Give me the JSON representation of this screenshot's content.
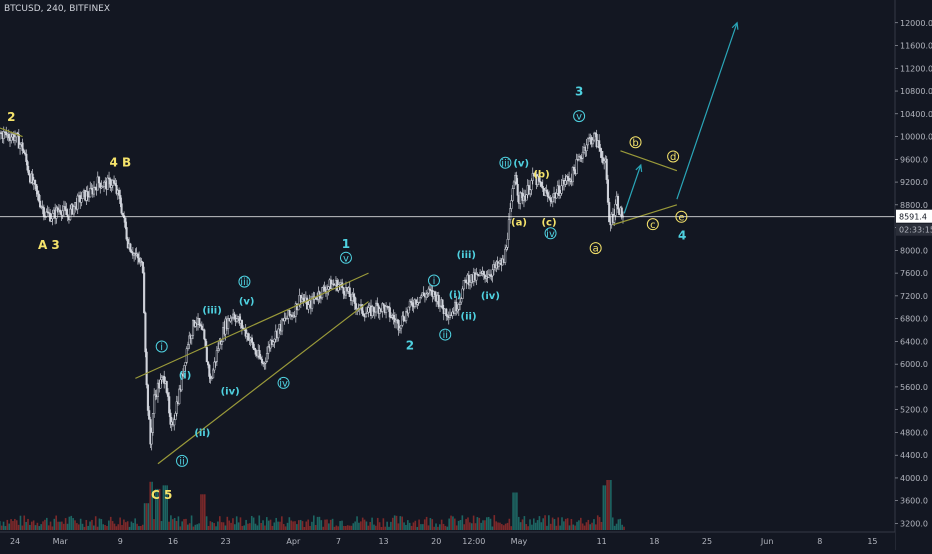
{
  "header": {
    "symbol": "BTCUSD, 240, BITFINEX"
  },
  "colors": {
    "background": "#131722",
    "candle_up": "#d1d4dc",
    "candle_down": "#d1d4dc",
    "volume_up": "#1f6f6a",
    "volume_down": "#8a2b2b",
    "wave_yellow": "#f5e36b",
    "wave_cyan": "#4fd1e0",
    "trendline": "#9a9a3a",
    "projection": "#2aa6b8",
    "axis_text": "#b2b5be",
    "price_label_bg": "#ffffff"
  },
  "chart_data": {
    "type": "candlestick",
    "y_ticks": [
      "12000.0",
      "11600.0",
      "11200.0",
      "10800.0",
      "10400.0",
      "10000.0",
      "9600.0",
      "9200.0",
      "8800.0",
      "8400.0",
      "8000.0",
      "7600.0",
      "7200.0",
      "6800.0",
      "6400.0",
      "6000.0",
      "5600.0",
      "5200.0",
      "4800.0",
      "4400.0",
      "4000.0",
      "3600.0",
      "3200.0"
    ],
    "y_tick_values": [
      12000,
      11600,
      11200,
      10800,
      10400,
      10000,
      9600,
      9200,
      8800,
      8400,
      8000,
      7600,
      7200,
      6800,
      6400,
      6000,
      5600,
      5200,
      4800,
      4400,
      4000,
      3600,
      3200
    ],
    "ylim": [
      3050,
      12400
    ],
    "x_ticks": [
      "24",
      "Mar",
      "9",
      "16",
      "23",
      "Apr",
      "7",
      "13",
      "20",
      "12:00",
      "May",
      "11",
      "18",
      "25",
      "Jun",
      "8",
      "15"
    ],
    "x_tick_days": [
      0,
      6,
      14,
      21,
      28,
      37,
      43,
      49,
      56,
      61,
      67,
      78,
      85,
      92,
      100,
      107,
      114
    ],
    "xlim": [
      -2,
      117
    ],
    "price_line": {
      "value": 8591.4,
      "label": "8591.4",
      "countdown": "02:33:15"
    },
    "price_path": [
      [
        -2,
        10050
      ],
      [
        0,
        10000
      ],
      [
        1,
        9800
      ],
      [
        2,
        9300
      ],
      [
        3,
        8950
      ],
      [
        4,
        8650
      ],
      [
        5,
        8600
      ],
      [
        6,
        8750
      ],
      [
        7,
        8600
      ],
      [
        8,
        8800
      ],
      [
        9,
        8950
      ],
      [
        10,
        9000
      ],
      [
        11,
        9200
      ],
      [
        12,
        9150
      ],
      [
        13,
        9200
      ],
      [
        14,
        8850
      ],
      [
        15,
        8150
      ],
      [
        16,
        7900
      ],
      [
        17,
        7700
      ],
      [
        17.5,
        5600
      ],
      [
        18,
        4600
      ],
      [
        18.5,
        5400
      ],
      [
        19,
        5600
      ],
      [
        20,
        5800
      ],
      [
        20.7,
        4800
      ],
      [
        21.3,
        5200
      ],
      [
        22,
        5600
      ],
      [
        23,
        6400
      ],
      [
        24,
        6800
      ],
      [
        25,
        6500
      ],
      [
        26,
        5700
      ],
      [
        27,
        6300
      ],
      [
        28,
        6700
      ],
      [
        29,
        6900
      ],
      [
        30,
        6700
      ],
      [
        31,
        6500
      ],
      [
        32,
        6200
      ],
      [
        33,
        6000
      ],
      [
        34,
        6400
      ],
      [
        35,
        6600
      ],
      [
        36,
        6800
      ],
      [
        37,
        6900
      ],
      [
        38,
        7200
      ],
      [
        39,
        7000
      ],
      [
        40,
        7200
      ],
      [
        41,
        7300
      ],
      [
        42,
        7400
      ],
      [
        43,
        7400
      ],
      [
        44,
        7300
      ],
      [
        45,
        7100
      ],
      [
        46,
        6950
      ],
      [
        47,
        6900
      ],
      [
        48,
        7000
      ],
      [
        49,
        7000
      ],
      [
        50,
        6850
      ],
      [
        51,
        6700
      ],
      [
        52,
        6900
      ],
      [
        53,
        7100
      ],
      [
        54,
        7200
      ],
      [
        55,
        7250
      ],
      [
        56,
        7200
      ],
      [
        57,
        6950
      ],
      [
        58,
        6900
      ],
      [
        59,
        7100
      ],
      [
        60,
        7500
      ],
      [
        61,
        7500
      ],
      [
        62,
        7550
      ],
      [
        63,
        7600
      ],
      [
        64,
        7700
      ],
      [
        65,
        7800
      ],
      [
        66,
        8800
      ],
      [
        66.5,
        9400
      ],
      [
        67,
        8900
      ],
      [
        68,
        9000
      ],
      [
        69,
        9300
      ],
      [
        70,
        9100
      ],
      [
        71,
        8900
      ],
      [
        72,
        9000
      ],
      [
        73,
        9200
      ],
      [
        74,
        9300
      ],
      [
        75,
        9600
      ],
      [
        76,
        9900
      ],
      [
        77,
        10000
      ],
      [
        78,
        9700
      ],
      [
        78.5,
        9500
      ],
      [
        79,
        8500
      ],
      [
        79.5,
        8600
      ],
      [
        80,
        8900
      ],
      [
        80.5,
        8650
      ],
      [
        81,
        8591.4
      ]
    ],
    "volume_spikes": [
      [
        18,
        540
      ],
      [
        19,
        460
      ],
      [
        20,
        500
      ],
      [
        17.5,
        300
      ],
      [
        25,
        400
      ],
      [
        66.5,
        420
      ],
      [
        78.5,
        500
      ],
      [
        79,
        560
      ]
    ],
    "trendlines": [
      {
        "from": [
          16,
          5750
        ],
        "to": [
          47,
          7600
        ]
      },
      {
        "from": [
          19,
          4250
        ],
        "to": [
          47,
          7100
        ]
      },
      {
        "from": [
          79.5,
          8450
        ],
        "to": [
          88,
          8800
        ]
      },
      {
        "from": [
          80.5,
          9750
        ],
        "to": [
          88,
          9400
        ]
      },
      {
        "from": [
          -2,
          10150
        ],
        "to": [
          1,
          10000
        ]
      }
    ],
    "projections": [
      {
        "points": [
          [
            81,
            8650
          ],
          [
            83.2,
            9500
          ]
        ]
      },
      {
        "points": [
          [
            88,
            8900
          ],
          [
            96,
            12000
          ]
        ]
      }
    ],
    "wave_labels": [
      {
        "text": "2",
        "day": -0.5,
        "price": 10350,
        "color": "yellow",
        "circled": false,
        "size": 12
      },
      {
        "text": "4 B",
        "day": 14,
        "price": 9550,
        "color": "yellow",
        "circled": false,
        "size": 12
      },
      {
        "text": "A 3",
        "day": 4.5,
        "price": 8100,
        "color": "yellow",
        "circled": false,
        "size": 12
      },
      {
        "text": "C 5",
        "day": 19.5,
        "price": 3710,
        "color": "yellow",
        "circled": false,
        "size": 12
      },
      {
        "text": "i",
        "day": 19.5,
        "price": 6310,
        "color": "cyan",
        "circled": true,
        "size": 10
      },
      {
        "text": "(i)",
        "day": 22.6,
        "price": 5810,
        "color": "cyan",
        "circled": false,
        "size": 10
      },
      {
        "text": "(iii)",
        "day": 26.2,
        "price": 6950,
        "color": "cyan",
        "circled": false,
        "size": 10
      },
      {
        "text": "iii",
        "day": 30.5,
        "price": 7450,
        "color": "cyan",
        "circled": true,
        "size": 10
      },
      {
        "text": "(v)",
        "day": 30.8,
        "price": 7110,
        "color": "cyan",
        "circled": false,
        "size": 10
      },
      {
        "text": "v",
        "day": 44,
        "price": 7870,
        "color": "cyan",
        "circled": true,
        "size": 10
      },
      {
        "text": "1",
        "day": 44,
        "price": 8120,
        "color": "cyan",
        "circled": false,
        "size": 12
      },
      {
        "text": "(iv)",
        "day": 28.6,
        "price": 5530,
        "color": "cyan",
        "circled": false,
        "size": 10
      },
      {
        "text": "iv",
        "day": 35.7,
        "price": 5670,
        "color": "cyan",
        "circled": true,
        "size": 10
      },
      {
        "text": "(ii)",
        "day": 24.9,
        "price": 4800,
        "color": "cyan",
        "circled": false,
        "size": 10
      },
      {
        "text": "ii",
        "day": 22.2,
        "price": 4300,
        "color": "cyan",
        "circled": true,
        "size": 10
      },
      {
        "text": "2",
        "day": 52.5,
        "price": 6330,
        "color": "cyan",
        "circled": false,
        "size": 12
      },
      {
        "text": "i",
        "day": 55.7,
        "price": 7470,
        "color": "cyan",
        "circled": true,
        "size": 10
      },
      {
        "text": "(i)",
        "day": 58.5,
        "price": 7230,
        "color": "cyan",
        "circled": false,
        "size": 10
      },
      {
        "text": "ii",
        "day": 57.2,
        "price": 6520,
        "color": "cyan",
        "circled": true,
        "size": 10
      },
      {
        "text": "(ii)",
        "day": 60.3,
        "price": 6850,
        "color": "cyan",
        "circled": false,
        "size": 10
      },
      {
        "text": "(iii)",
        "day": 60,
        "price": 7930,
        "color": "cyan",
        "circled": false,
        "size": 10
      },
      {
        "text": "(iv)",
        "day": 63.2,
        "price": 7210,
        "color": "cyan",
        "circled": false,
        "size": 10
      },
      {
        "text": "iii",
        "day": 65.2,
        "price": 9540,
        "color": "cyan",
        "circled": true,
        "size": 10
      },
      {
        "text": "(v)",
        "day": 67.3,
        "price": 9540,
        "color": "cyan",
        "circled": false,
        "size": 10
      },
      {
        "text": "(a)",
        "day": 67,
        "price": 8500,
        "color": "yellow",
        "circled": false,
        "size": 10
      },
      {
        "text": "(b)",
        "day": 70,
        "price": 9340,
        "color": "yellow",
        "circled": false,
        "size": 10
      },
      {
        "text": "(c)",
        "day": 71,
        "price": 8500,
        "color": "yellow",
        "circled": false,
        "size": 10
      },
      {
        "text": "iv",
        "day": 71.2,
        "price": 8300,
        "color": "cyan",
        "circled": true,
        "size": 10
      },
      {
        "text": "v",
        "day": 75,
        "price": 10360,
        "color": "cyan",
        "circled": true,
        "size": 10
      },
      {
        "text": "3",
        "day": 75,
        "price": 10800,
        "color": "cyan",
        "circled": false,
        "size": 12
      },
      {
        "text": "b",
        "day": 82.5,
        "price": 9900,
        "color": "yellow",
        "circled": true,
        "size": 10
      },
      {
        "text": "d",
        "day": 87.5,
        "price": 9650,
        "color": "yellow",
        "circled": true,
        "size": 10
      },
      {
        "text": "a",
        "day": 77.2,
        "price": 8040,
        "color": "yellow",
        "circled": true,
        "size": 10
      },
      {
        "text": "c",
        "day": 84.8,
        "price": 8460,
        "color": "yellow",
        "circled": true,
        "size": 10
      },
      {
        "text": "e",
        "day": 88.6,
        "price": 8590,
        "color": "yellow",
        "circled": true,
        "size": 10
      },
      {
        "text": "4",
        "day": 88.7,
        "price": 8270,
        "color": "cyan",
        "circled": false,
        "size": 12
      }
    ]
  }
}
